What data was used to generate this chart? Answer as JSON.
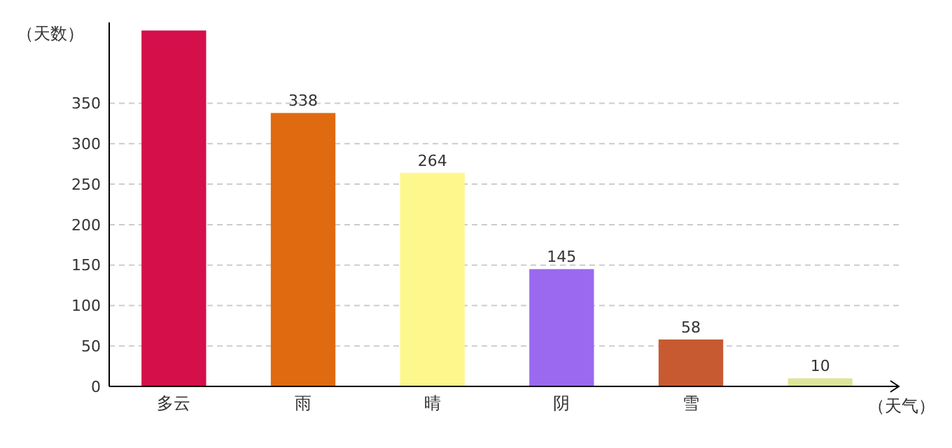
{
  "chart_data": {
    "type": "bar",
    "xlabel": "（天气）",
    "ylabel": "（天数）",
    "categories": [
      "多云",
      "雨",
      "晴",
      "阴",
      "雪",
      null
    ],
    "values": [
      440,
      338,
      264,
      145,
      58,
      10
    ],
    "colors": [
      "#d40f4a",
      "#e06a10",
      "#fef78c",
      "#9b69ef",
      "#c85a32",
      "#dde59b"
    ],
    "ylim": [
      0,
      450
    ],
    "yticks": [
      0,
      50,
      100,
      150,
      200,
      250,
      300,
      350
    ],
    "grid": "y",
    "value_labels": [
      null,
      "338",
      "264",
      "145",
      "58",
      "10"
    ]
  }
}
